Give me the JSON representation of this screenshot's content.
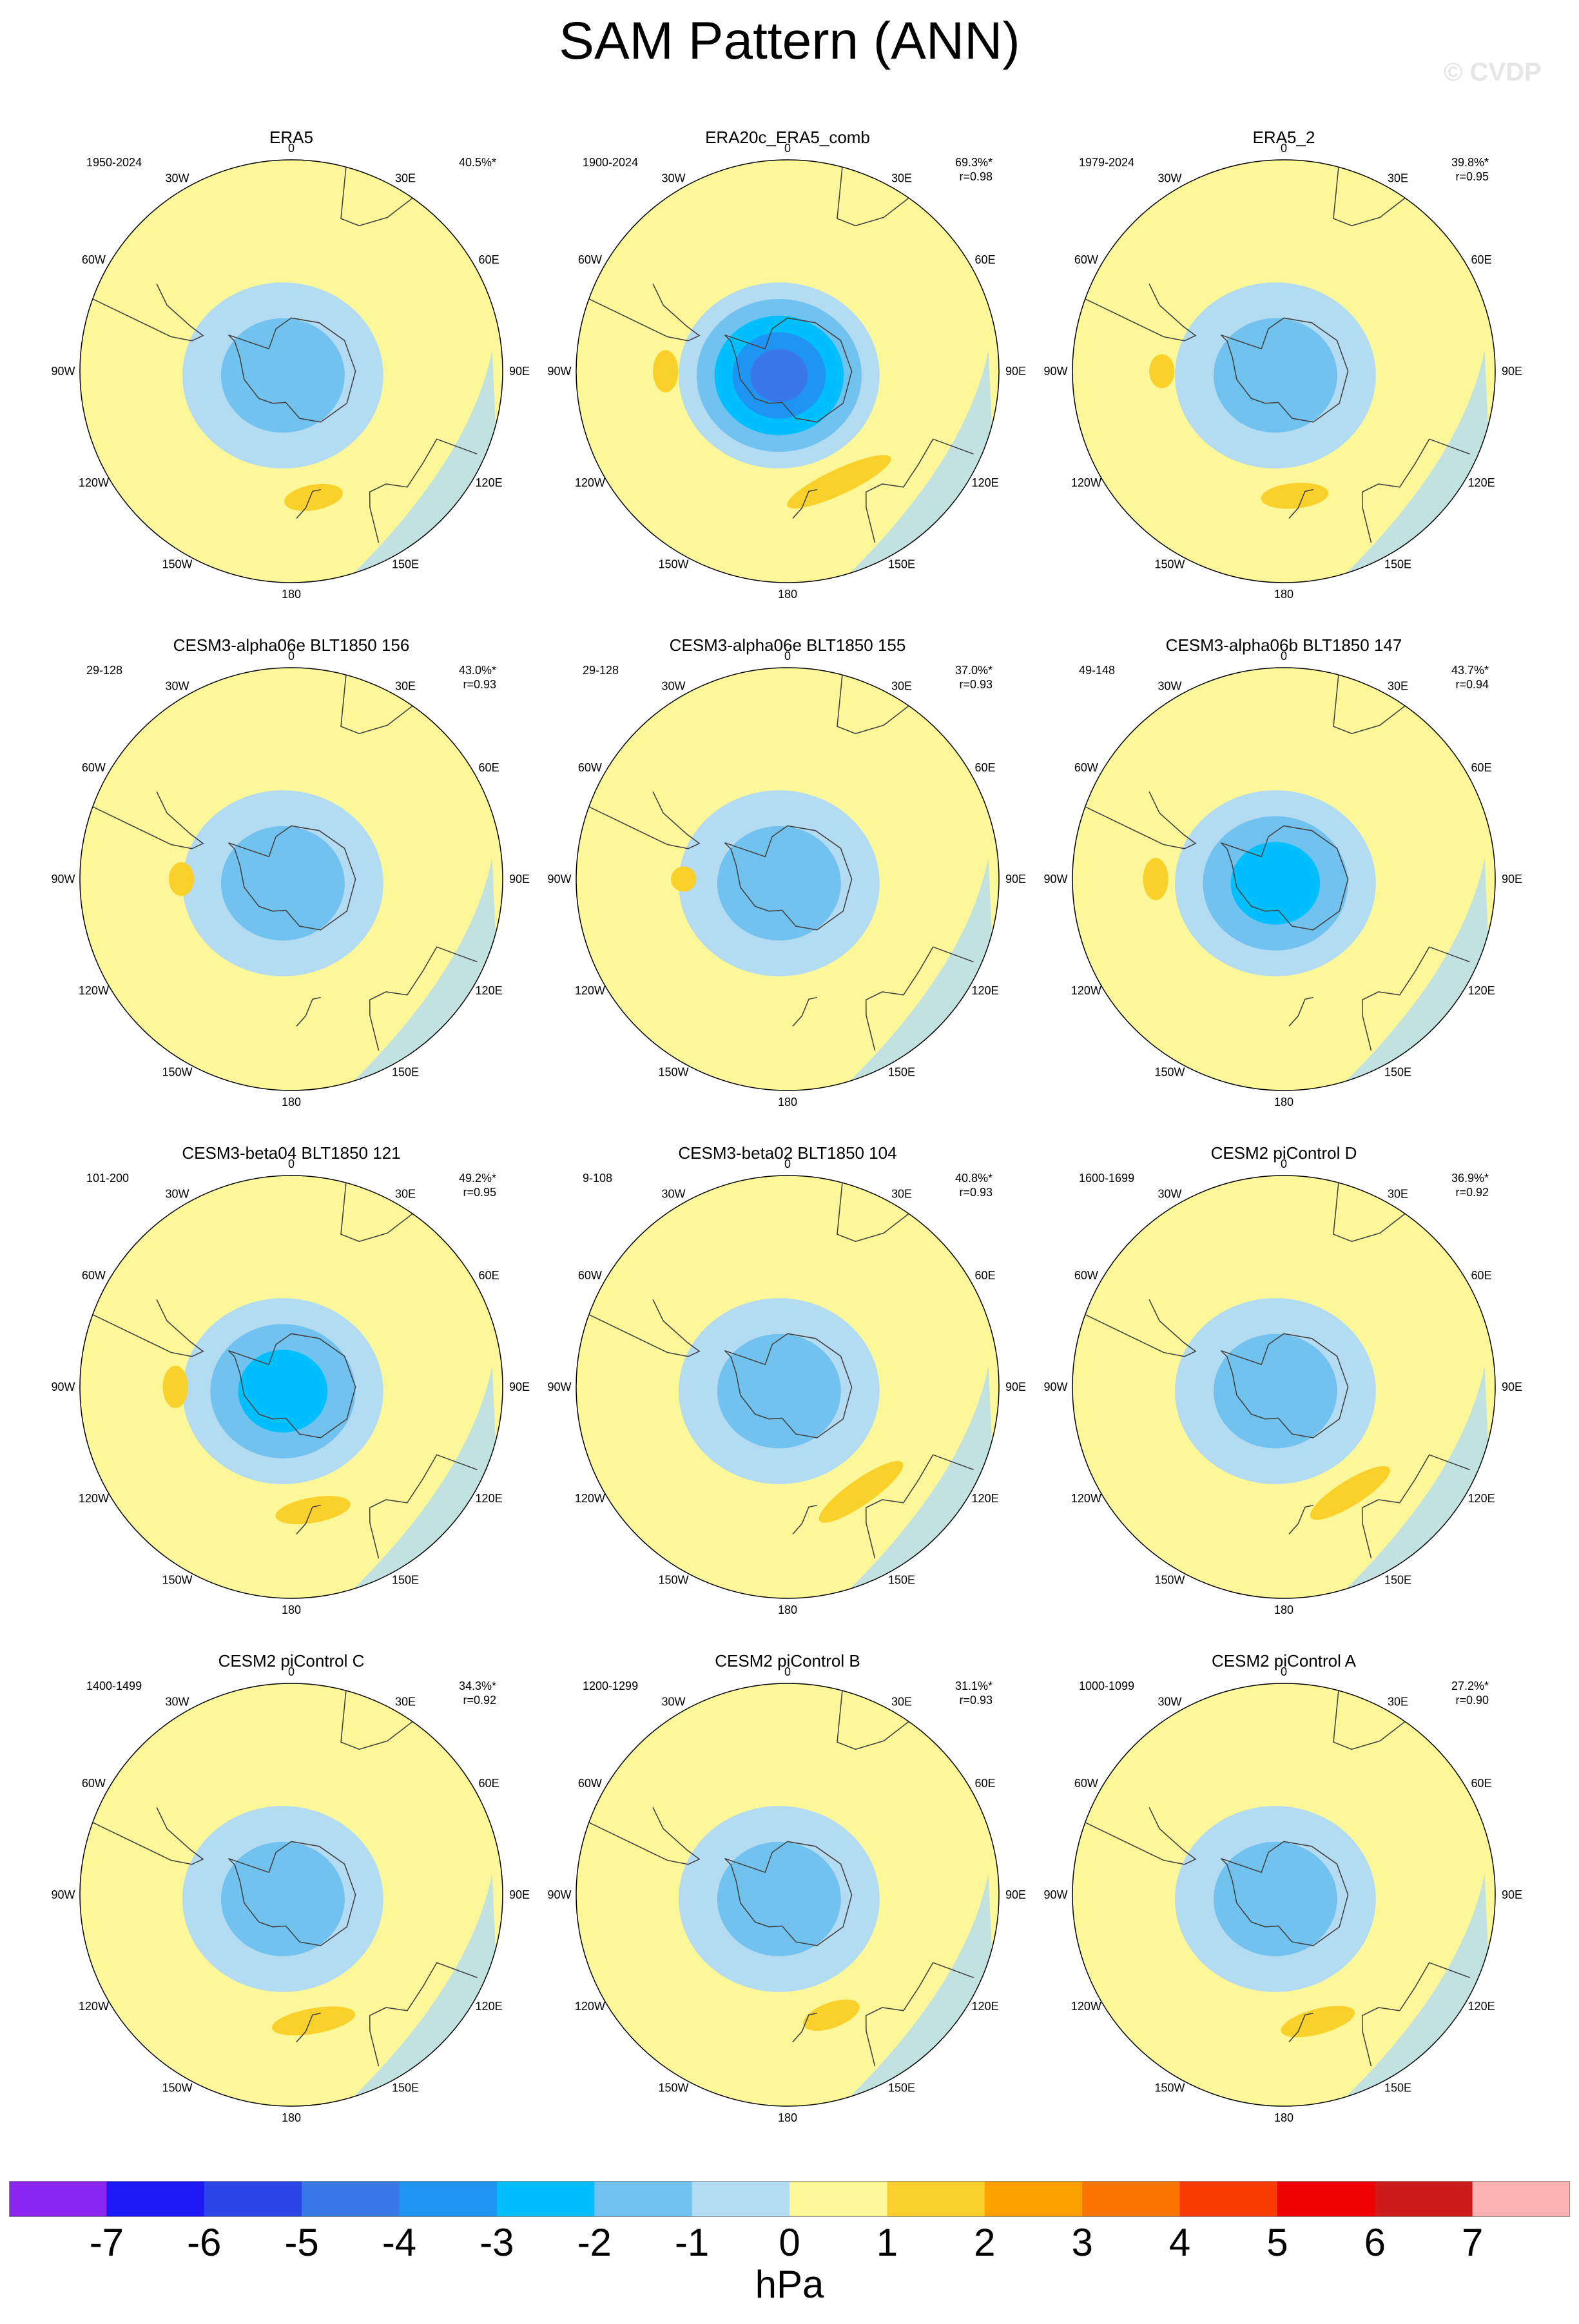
{
  "title": "SAM Pattern (ANN)",
  "watermark": "© CVDP",
  "units": "hPa",
  "colors": {
    "neg7": "#8a22f0",
    "neg6": "#1e18f7",
    "neg5": "#2a46e8",
    "neg4": "#3a78e8",
    "neg3": "#1e95f5",
    "neg2": "#00bfff",
    "neg1": "#72c2ef",
    "neg05": "#b3dcf2",
    "pos05": "#fcf799",
    "pos1": "#fad12a",
    "pos2": "#fca200",
    "pos3": "#fc7400",
    "pos4": "#fb3a00",
    "pos6": "#ee0000",
    "pos7": "#cd1a1a",
    "pos8": "#fcb3b3",
    "land_outline": "#444444"
  },
  "chart_data": {
    "type": "polar-stereographic-contour-maps",
    "variable": "SAM Pattern",
    "season": "ANN",
    "colorbar": {
      "labels": [
        "-7",
        "-6",
        "-5",
        "-4",
        "-3",
        "-2",
        "-1",
        "0",
        "1",
        "2",
        "3",
        "4",
        "5",
        "6",
        "7"
      ],
      "color_keys": [
        "neg7",
        "neg6",
        "neg5",
        "neg4",
        "neg3",
        "neg2",
        "neg1",
        "neg05",
        "pos05",
        "pos1",
        "pos2",
        "pos3",
        "pos4",
        "pos6",
        "pos7",
        "pos8"
      ],
      "units": "hPa"
    },
    "longitude_labels": [
      "0",
      "30E",
      "60E",
      "90E",
      "120E",
      "150E",
      "180",
      "150W",
      "120W",
      "90W",
      "60W",
      "30W"
    ],
    "panels": [
      {
        "name": "ERA5",
        "years": "1950-2024",
        "pct": "40.5%*",
        "r": "",
        "amplitude": -2,
        "anomaly": [
          {
            "lon": 170,
            "lat": -44,
            "level": 1,
            "s": 0.14
          }
        ]
      },
      {
        "name": "ERA20c_ERA5_comb",
        "years": "1900-2024",
        "pct": "69.3%*",
        "r": "r=0.98",
        "amplitude": -5,
        "anomaly": [
          {
            "lon": 155,
            "lat": -46,
            "level": 1,
            "s": 0.27
          },
          {
            "lon": -90,
            "lat": -46,
            "level": 1,
            "s": 0.1
          }
        ]
      },
      {
        "name": "ERA5_2",
        "years": "1979-2024",
        "pct": "39.8%*",
        "r": "r=0.95",
        "amplitude": -2,
        "anomaly": [
          {
            "lon": 175,
            "lat": -45,
            "level": 1,
            "s": 0.16
          },
          {
            "lon": -90,
            "lat": -46,
            "level": 1,
            "s": 0.08
          }
        ]
      },
      {
        "name": "CESM3-alpha06e BLT1850 156",
        "years": "29-128",
        "pct": "43.0%*",
        "r": "r=0.93",
        "amplitude": -2,
        "anomaly": [
          {
            "lon": -90,
            "lat": -50,
            "level": 1,
            "s": 0.08
          }
        ]
      },
      {
        "name": "CESM3-alpha06e BLT1850 155",
        "years": "29-128",
        "pct": "37.0%*",
        "r": "r=0.93",
        "amplitude": -2,
        "anomaly": [
          {
            "lon": -90,
            "lat": -52,
            "level": 1,
            "s": 0.06
          }
        ]
      },
      {
        "name": "CESM3-alpha06b BLT1850 147",
        "years": "49-148",
        "pct": "43.7%*",
        "r": "r=0.94",
        "amplitude": -3,
        "anomaly": [
          {
            "lon": -90,
            "lat": -44,
            "level": 1,
            "s": 0.1
          }
        ]
      },
      {
        "name": "CESM3-beta04 BLT1850 121",
        "years": "101-200",
        "pct": "49.2%*",
        "r": "r=0.95",
        "amplitude": -3,
        "anomaly": [
          {
            "lon": -90,
            "lat": -48,
            "level": 1,
            "s": 0.1
          },
          {
            "lon": 170,
            "lat": -45,
            "level": 1,
            "s": 0.18
          }
        ]
      },
      {
        "name": "CESM3-beta02 BLT1850 104",
        "years": "9-108",
        "pct": "40.8%*",
        "r": "r=0.93",
        "amplitude": -2,
        "anomaly": [
          {
            "lon": 145,
            "lat": -44,
            "level": 1,
            "s": 0.24
          }
        ]
      },
      {
        "name": "CESM2 piControl D",
        "years": "1600-1699",
        "pct": "36.9%*",
        "r": "r=0.92",
        "amplitude": -2,
        "anomaly": [
          {
            "lon": 148,
            "lat": -45,
            "level": 1,
            "s": 0.22
          }
        ]
      },
      {
        "name": "CESM2 piControl C",
        "years": "1400-1499",
        "pct": "34.3%*",
        "r": "r=0.92",
        "amplitude": -2,
        "anomaly": [
          {
            "lon": 170,
            "lat": -44,
            "level": 1,
            "s": 0.2
          }
        ]
      },
      {
        "name": "CESM2 piControl B",
        "years": "1200-1299",
        "pct": "31.1%*",
        "r": "r=0.93",
        "amplitude": -2,
        "anomaly": [
          {
            "lon": 160,
            "lat": -44,
            "level": 1,
            "s": 0.14
          }
        ]
      },
      {
        "name": "CESM2 piControl A",
        "years": "1000-1099",
        "pct": "27.2%*",
        "r": "r=0.90",
        "amplitude": -2,
        "anomaly": [
          {
            "lon": 165,
            "lat": -43,
            "level": 1,
            "s": 0.18
          }
        ]
      }
    ]
  }
}
